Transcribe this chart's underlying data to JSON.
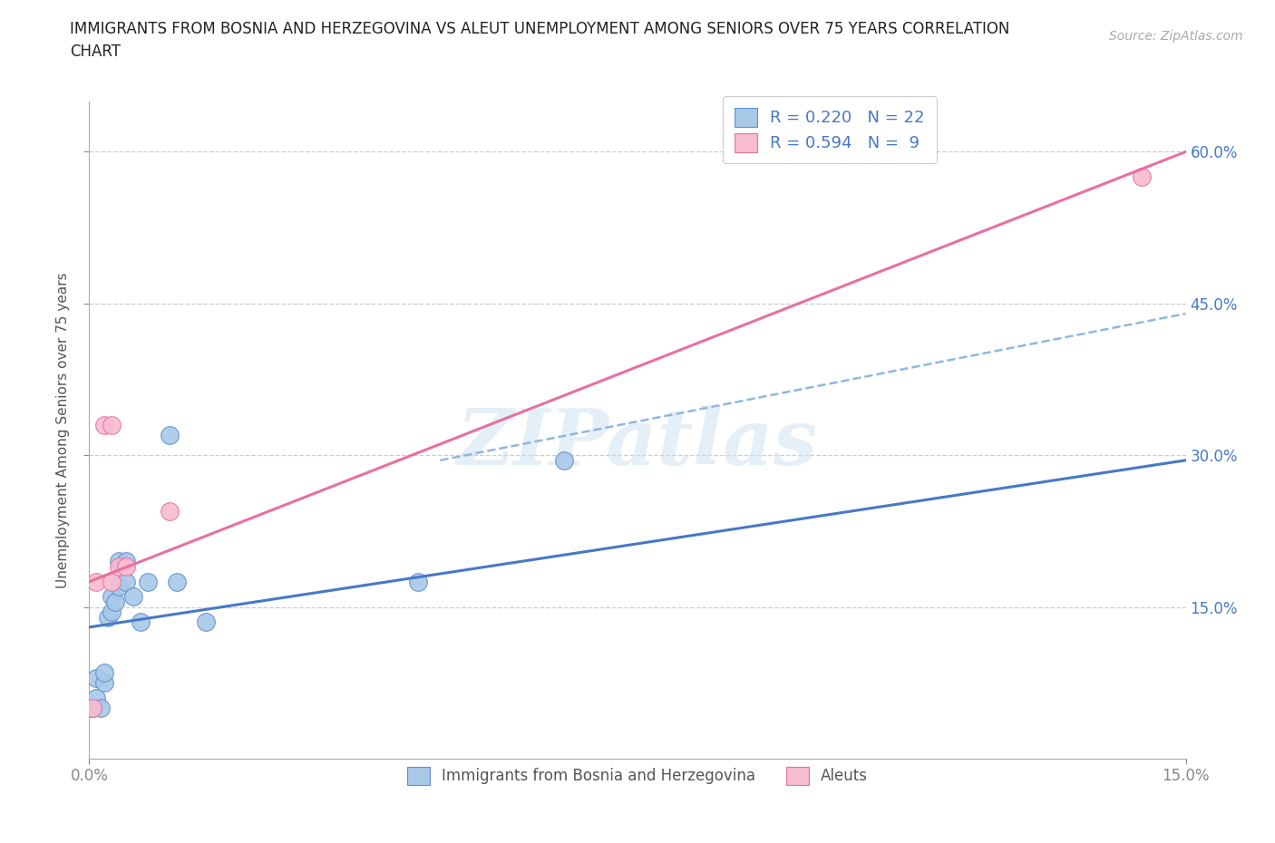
{
  "title_line1": "IMMIGRANTS FROM BOSNIA AND HERZEGOVINA VS ALEUT UNEMPLOYMENT AMONG SENIORS OVER 75 YEARS CORRELATION",
  "title_line2": "CHART",
  "source": "Source: ZipAtlas.com",
  "ylabel": "Unemployment Among Seniors over 75 years",
  "watermark": "ZIPatlas",
  "xlim": [
    0.0,
    0.15
  ],
  "ylim": [
    0.0,
    0.65
  ],
  "ytick_labels": [
    "15.0%",
    "30.0%",
    "45.0%",
    "60.0%"
  ],
  "ytick_values": [
    0.15,
    0.3,
    0.45,
    0.6
  ],
  "xtick_labels": [
    "0.0%",
    "15.0%"
  ],
  "xtick_values": [
    0.0,
    0.15
  ],
  "blue_scatter_x": [
    0.0005,
    0.001,
    0.001,
    0.0015,
    0.002,
    0.002,
    0.0025,
    0.003,
    0.003,
    0.0035,
    0.004,
    0.004,
    0.005,
    0.005,
    0.006,
    0.007,
    0.008,
    0.011,
    0.012,
    0.016,
    0.045,
    0.065
  ],
  "blue_scatter_y": [
    0.05,
    0.06,
    0.08,
    0.05,
    0.075,
    0.085,
    0.14,
    0.145,
    0.16,
    0.155,
    0.17,
    0.195,
    0.175,
    0.195,
    0.16,
    0.135,
    0.175,
    0.32,
    0.175,
    0.135,
    0.175,
    0.295
  ],
  "pink_scatter_x": [
    0.0005,
    0.001,
    0.002,
    0.003,
    0.003,
    0.004,
    0.005,
    0.011,
    0.144
  ],
  "pink_scatter_y": [
    0.05,
    0.175,
    0.33,
    0.175,
    0.33,
    0.19,
    0.19,
    0.245,
    0.575
  ],
  "blue_line_x": [
    0.0,
    0.15
  ],
  "blue_line_y": [
    0.13,
    0.295
  ],
  "blue_dash_line_x": [
    0.048,
    0.15
  ],
  "blue_dash_line_y": [
    0.295,
    0.44
  ],
  "pink_line_x": [
    0.0,
    0.15
  ],
  "pink_line_y": [
    0.175,
    0.6
  ],
  "blue_scatter_color": "#a8c8e8",
  "blue_scatter_edge": "#6090d0",
  "pink_scatter_color": "#f8bcd0",
  "pink_scatter_edge": "#e870a0",
  "blue_line_color": "#4878c8",
  "blue_dash_color": "#90b8e0",
  "pink_line_color": "#e870a0",
  "R_blue": 0.22,
  "N_blue": 22,
  "R_pink": 0.594,
  "N_pink": 9,
  "legend_blue_label": "Immigrants from Bosnia and Herzegovina",
  "legend_pink_label": "Aleuts",
  "title_color": "#222222",
  "axis_label_color": "#555555",
  "tick_color": "#888888",
  "grid_color": "#cccccc",
  "scatter_size": 200
}
